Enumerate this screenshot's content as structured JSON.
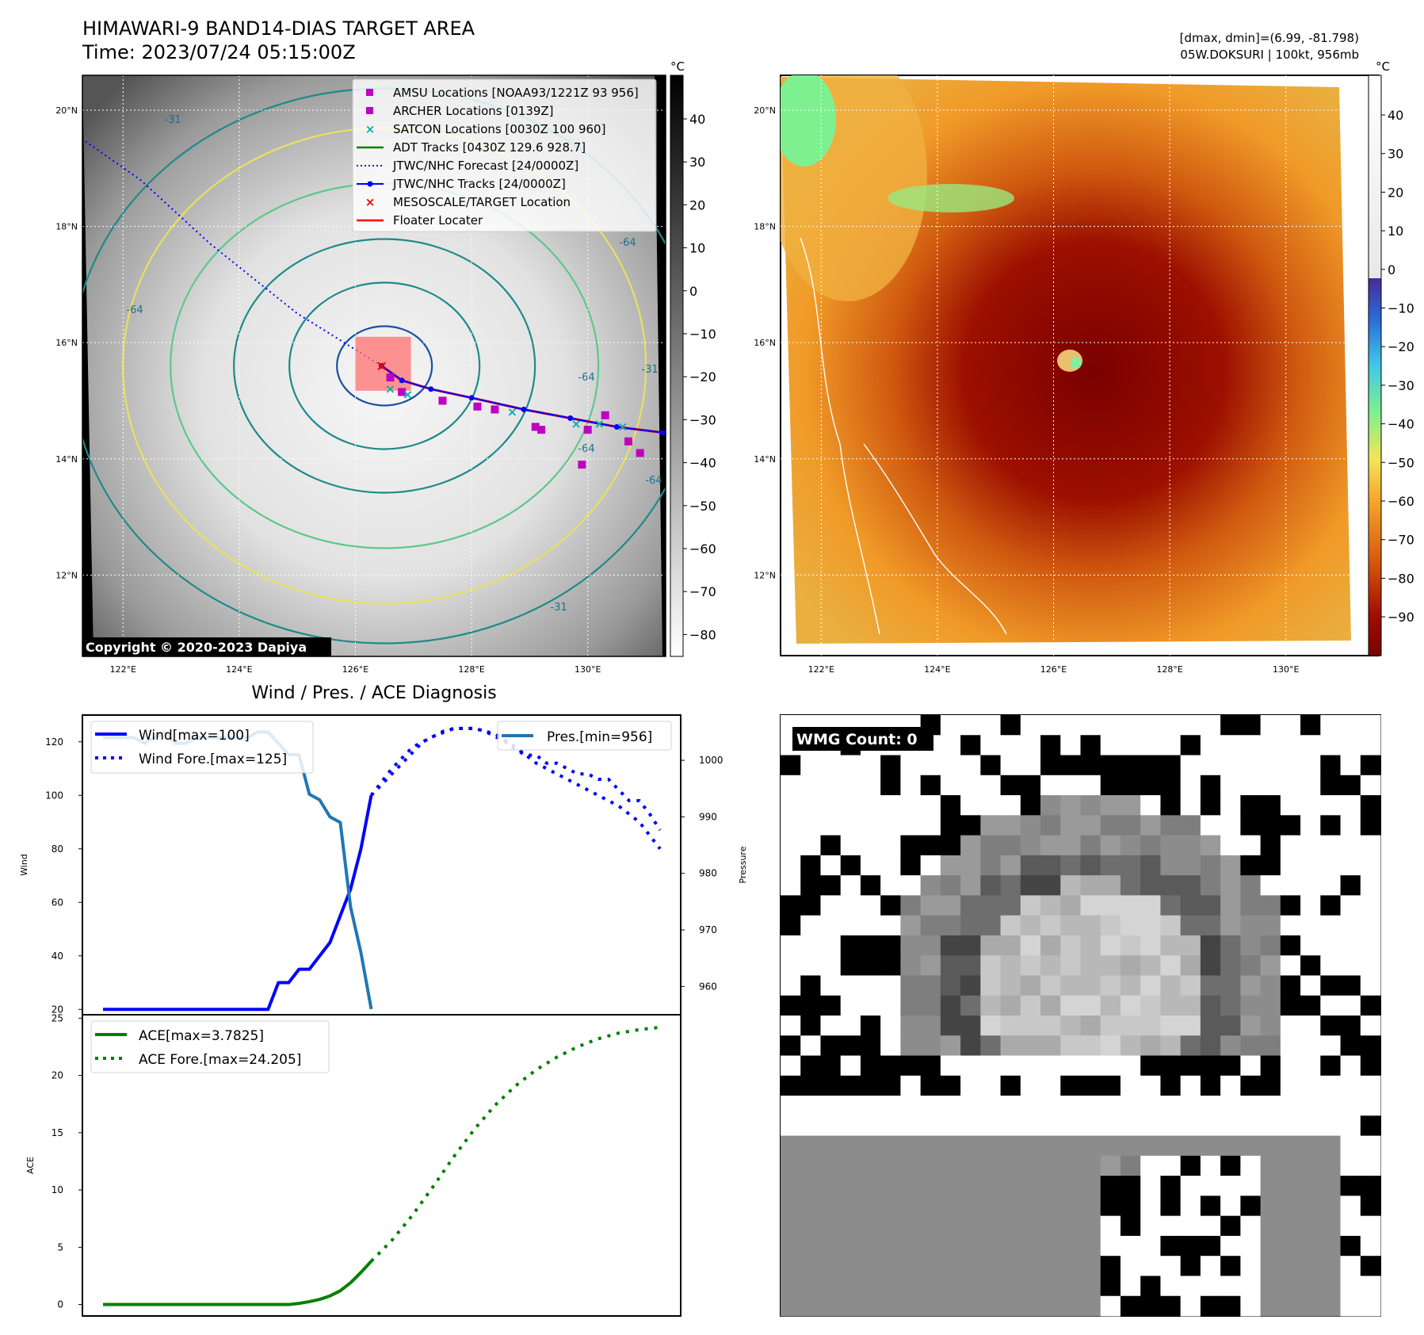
{
  "header": {
    "title": "HIMAWARI-9 BAND14-DIAS TARGET AREA",
    "time": "Time: 2023/07/24 05:15:00Z",
    "dmax_dmin": "[dmax, dmin]=(6.99, -81.798)",
    "storm_info": "05W.DOKSURI | 100kt, 956mb"
  },
  "map_left": {
    "copyright": "Copyright © 2020-2023 Dapiya",
    "colorbar_unit": "°C",
    "colorbar_ticks": [
      "40",
      "30",
      "20",
      "10",
      "0",
      "−10",
      "−20",
      "−30",
      "−40",
      "−50",
      "−60",
      "−70",
      "−80"
    ],
    "lat_labels": [
      "20°N",
      "18°N",
      "16°N",
      "14°N",
      "12°N"
    ],
    "lon_labels": [
      "122°E",
      "124°E",
      "126°E",
      "128°E",
      "130°E"
    ],
    "contour_labels": [
      "-64",
      "-31",
      "-64",
      "-64",
      "-31",
      "-64",
      "-31",
      "-64"
    ],
    "legend": [
      {
        "label": "AMSU Locations [NOAA93/1221Z 93 956]",
        "color": "#c000c0",
        "marker": "square"
      },
      {
        "label": "ARCHER Locations [0139Z]",
        "color": "#c000c0",
        "marker": "square"
      },
      {
        "label": "SATCON Locations [0030Z 100 960]",
        "color": "#00b0b0",
        "marker": "x"
      },
      {
        "label": "ADT Tracks [0430Z 129.6 928.7]",
        "color": "#008000",
        "marker": "line"
      },
      {
        "label": "JTWC/NHC Forecast [24/0000Z]",
        "color": "#0000ff",
        "marker": "dotted"
      },
      {
        "label": "JTWC/NHC Tracks [24/0000Z]",
        "color": "#0000ff",
        "marker": "line-dot"
      },
      {
        "label": "MESOSCALE/TARGET Location",
        "color": "#ff0000",
        "marker": "x"
      },
      {
        "label": "Floater Locater",
        "color": "#ff0000",
        "marker": "line"
      }
    ],
    "track_obs": [
      [
        131.3,
        14.45
      ],
      [
        130.5,
        14.55
      ],
      [
        129.7,
        14.7
      ],
      [
        128.9,
        14.85
      ],
      [
        128.0,
        15.05
      ],
      [
        127.3,
        15.2
      ],
      [
        126.8,
        15.35
      ],
      [
        126.45,
        15.6
      ]
    ],
    "track_fcst": [
      [
        126.45,
        15.6
      ],
      [
        125.0,
        16.5
      ],
      [
        123.5,
        17.7
      ],
      [
        122.3,
        18.8
      ],
      [
        121.3,
        19.5
      ]
    ],
    "amsu_pts": [
      [
        127.5,
        15.0
      ],
      [
        128.1,
        14.9
      ],
      [
        128.4,
        14.85
      ],
      [
        129.2,
        14.5
      ],
      [
        130.0,
        14.5
      ],
      [
        130.3,
        14.75
      ],
      [
        130.7,
        14.3
      ],
      [
        130.9,
        14.1
      ],
      [
        129.9,
        13.9
      ],
      [
        129.1,
        14.55
      ],
      [
        126.6,
        15.4
      ],
      [
        126.8,
        15.15
      ]
    ],
    "satcon_pts": [
      [
        130.6,
        14.55
      ],
      [
        130.2,
        14.6
      ],
      [
        129.8,
        14.6
      ],
      [
        128.7,
        14.8
      ],
      [
        126.9,
        15.1
      ],
      [
        126.6,
        15.2
      ]
    ]
  },
  "map_right": {
    "colorbar_unit": "°C",
    "colorbar_ticks": [
      "40",
      "30",
      "20",
      "10",
      "0",
      "−10",
      "−20",
      "−30",
      "−40",
      "−50",
      "−60",
      "−70",
      "−80",
      "−90"
    ],
    "lat_labels": [
      "20°N",
      "18°N",
      "16°N",
      "14°N",
      "12°N"
    ],
    "lon_labels": [
      "122°E",
      "124°E",
      "126°E",
      "128°E",
      "130°E"
    ]
  },
  "chart_data": [
    {
      "type": "line",
      "title": "Wind / Pres. / ACE Diagnosis",
      "ylabel": "Wind",
      "y2label": "Pressure",
      "ylim": [
        18,
        130
      ],
      "y2lim": [
        955,
        1008
      ],
      "yticks": [
        "120",
        "100",
        "80",
        "60",
        "40",
        "20"
      ],
      "y2ticks": [
        "1000",
        "990",
        "980",
        "970",
        "960"
      ],
      "series": [
        {
          "name": "Wind[max=100]",
          "style": "solid",
          "color": "#0000ff",
          "x": [
            0,
            1,
            2,
            3,
            4,
            5,
            6,
            7,
            8,
            9,
            10,
            11,
            12,
            13,
            14,
            15,
            16,
            17,
            18,
            19,
            20,
            21,
            22,
            23,
            24,
            25,
            26
          ],
          "values": [
            20,
            20,
            20,
            20,
            20,
            20,
            20,
            20,
            20,
            20,
            20,
            20,
            20,
            20,
            20,
            20,
            20,
            30,
            30,
            35,
            35,
            40,
            45,
            55,
            65,
            80,
            100
          ]
        },
        {
          "name": "Wind Fore.[max=125]",
          "style": "dotted",
          "color": "#0000ff",
          "x": [
            26,
            28,
            30,
            32,
            34,
            36,
            38,
            40,
            42,
            44,
            46,
            48,
            50,
            52,
            54
          ],
          "values": [
            100,
            110,
            118,
            122,
            125,
            125,
            123,
            118,
            112,
            108,
            104,
            100,
            96,
            90,
            80
          ]
        },
        {
          "name": "Pres.[min=956]",
          "style": "solid",
          "color": "#1f77b4",
          "axis": "right",
          "x": [
            0,
            1,
            2,
            3,
            4,
            5,
            6,
            7,
            8,
            9,
            10,
            11,
            12,
            13,
            14,
            15,
            16,
            17,
            18,
            19,
            20,
            21,
            22,
            23,
            24,
            25,
            26
          ],
          "values": [
            1004,
            1004,
            1004,
            1004,
            1003,
            1004,
            1005,
            1003,
            1003,
            1004,
            1004,
            1004,
            1004,
            1004,
            1004,
            1005,
            1005,
            1003,
            1001,
            1001,
            994,
            993,
            990,
            989,
            974,
            966,
            956
          ]
        },
        {
          "name": "Wind Fore.",
          "style": "dotted",
          "color": "#0000ff",
          "x": [
            26,
            27,
            28,
            29,
            30,
            31,
            32,
            33,
            34,
            35,
            36,
            37,
            38,
            39,
            40,
            41,
            42,
            43,
            44,
            45,
            46,
            47,
            48,
            49,
            50,
            51,
            52,
            53,
            54
          ],
          "values": [
            100,
            104,
            108,
            112,
            116,
            120,
            122,
            124,
            125,
            125,
            125,
            124,
            122,
            120,
            117,
            115,
            115,
            112,
            112,
            110,
            108,
            108,
            106,
            106,
            102,
            98,
            98,
            93,
            87
          ]
        }
      ]
    },
    {
      "type": "line",
      "ylabel": "ACE",
      "ylim": [
        -1,
        25.3
      ],
      "yticks": [
        "25",
        "20",
        "15",
        "10",
        "5",
        "0"
      ],
      "series": [
        {
          "name": "ACE[max=3.7825]",
          "style": "solid",
          "color": "#008000",
          "x": [
            0,
            2,
            4,
            6,
            8,
            10,
            12,
            14,
            16,
            18,
            19,
            20,
            21,
            22,
            23,
            24,
            25,
            26
          ],
          "values": [
            0,
            0,
            0,
            0,
            0,
            0,
            0,
            0,
            0,
            0,
            0.1,
            0.25,
            0.45,
            0.75,
            1.2,
            1.9,
            2.8,
            3.78
          ]
        },
        {
          "name": "ACE Fore.[max=24.205]",
          "style": "dotted",
          "color": "#008000",
          "x": [
            26,
            28,
            30,
            32,
            34,
            36,
            38,
            40,
            42,
            44,
            46,
            48,
            50,
            52,
            54
          ],
          "values": [
            3.78,
            5.6,
            7.8,
            10.3,
            12.9,
            15.3,
            17.4,
            19.1,
            20.5,
            21.6,
            22.5,
            23.2,
            23.7,
            24.0,
            24.2
          ]
        }
      ]
    }
  ],
  "wmg": {
    "label": "WMG Count: 0"
  }
}
